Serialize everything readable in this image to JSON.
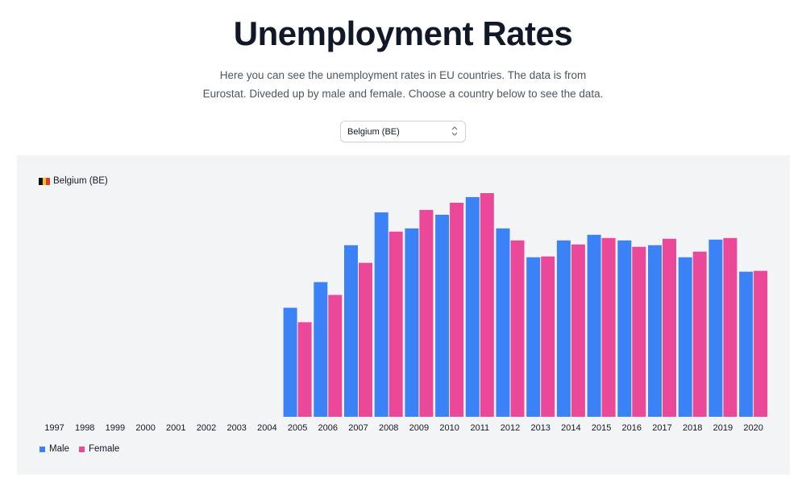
{
  "header": {
    "title": "Unemployment Rates",
    "description_line1": "Here you can see the unemployment rates in EU countries. The data is from",
    "description_line2": "Eurostat. Diveded up by male and female. Choose a country below to see the data."
  },
  "country_select": {
    "value": "Belgium (BE)"
  },
  "legend": {
    "country": "Belgium (BE)"
  },
  "colors": {
    "male": "#3b82f6",
    "female": "#ec4899",
    "background": "#f3f4f6"
  },
  "chart_data": {
    "type": "bar",
    "categories": [
      "1997",
      "1998",
      "1999",
      "2000",
      "2001",
      "2002",
      "2003",
      "2004",
      "2005",
      "2006",
      "2007",
      "2008",
      "2009",
      "2010",
      "2011",
      "2012",
      "2013",
      "2014",
      "2015",
      "2016",
      "2017",
      "2018",
      "2019",
      "2020"
    ],
    "series": [
      {
        "name": "Male",
        "values": [
          null,
          null,
          null,
          null,
          null,
          null,
          null,
          null,
          136,
          168,
          214,
          255,
          235,
          252,
          274,
          235,
          199,
          220,
          227,
          220,
          214,
          199,
          221,
          181
        ]
      },
      {
        "name": "Female",
        "values": [
          null,
          null,
          null,
          null,
          null,
          null,
          null,
          null,
          118,
          152,
          192,
          231,
          258,
          267,
          279,
          220,
          200,
          215,
          223,
          212,
          222,
          206,
          223,
          182
        ]
      }
    ],
    "legend": [
      "Male",
      "Female"
    ],
    "ylim": [
      0,
      300
    ]
  }
}
